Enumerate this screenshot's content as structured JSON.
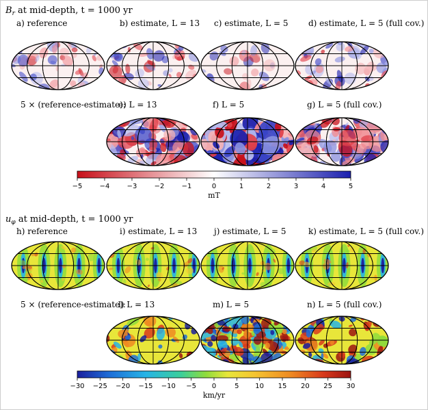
{
  "figure": {
    "section_br": {
      "header_symbol": "B",
      "header_sub": "r",
      "header_rest": " at mid-depth, t = 1000 yr",
      "row1_labels": [
        "a) reference",
        "b) estimate, L = 13",
        "c) estimate, L = 5",
        "d) estimate, L = 5 (full cov.)"
      ],
      "diff_label": "5 × (reference-estimate):",
      "row2_labels": [
        "e) L = 13",
        "f) L = 5",
        "g) L = 5 (full cov.)"
      ],
      "colorbar": {
        "ticks": [
          "−5",
          "−4",
          "−3",
          "−2",
          "−1",
          "0",
          "1",
          "2",
          "3",
          "4",
          "5"
        ],
        "unit": "mT",
        "colors": [
          "#c8101a",
          "#ffffff",
          "#1a1fae"
        ]
      }
    },
    "section_uphi": {
      "header_symbol": "u",
      "header_sub": "φ",
      "header_rest": " at mid-depth, t = 1000 yr",
      "row1_labels": [
        "h) reference",
        "i) estimate, L = 13",
        "j) estimate, L = 5",
        "k) estimate, L = 5 (full cov.)"
      ],
      "diff_label": "5 × (reference-estimate):",
      "row2_labels": [
        "l) L = 13",
        "m) L = 5",
        "n) L = 5 (full cov.)"
      ],
      "colorbar": {
        "ticks": [
          "−30",
          "−25",
          "−20",
          "−15",
          "−10",
          "−5",
          "0",
          "5",
          "10",
          "15",
          "20",
          "25",
          "30"
        ],
        "unit": "km/yr",
        "colors": [
          "#1a1f9e",
          "#1e6fd8",
          "#27b4e6",
          "#3ccf9a",
          "#8fdc3c",
          "#e8e63a",
          "#f5c431",
          "#ee8a22",
          "#d8391c",
          "#9c1512"
        ]
      }
    }
  }
}
